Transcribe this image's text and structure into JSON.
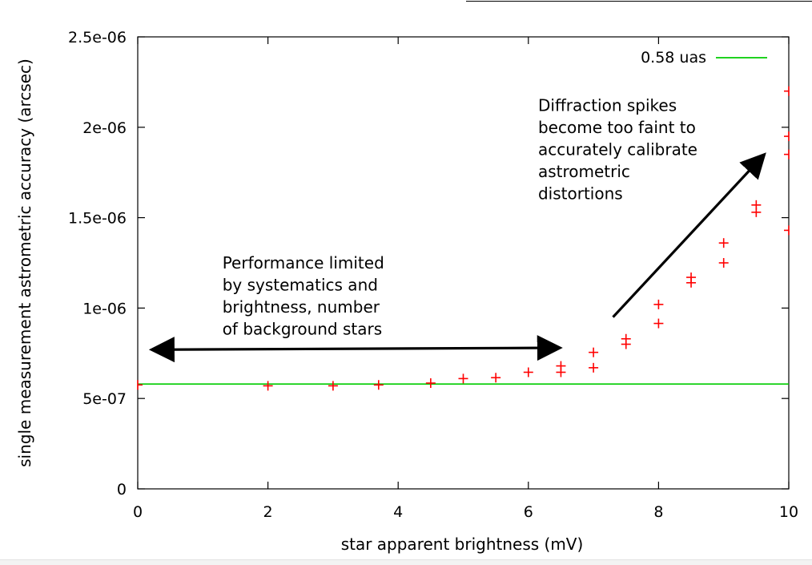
{
  "chart_data": {
    "type": "scatter",
    "title": "",
    "xlabel": "star apparent brightness (mV)",
    "ylabel": "single measurement astrometric accuracy (arcsec)",
    "xlim": [
      0,
      10
    ],
    "ylim": [
      0,
      2.5e-06
    ],
    "x_ticks": [
      {
        "value": 0,
        "label": "0"
      },
      {
        "value": 2,
        "label": "2"
      },
      {
        "value": 4,
        "label": "4"
      },
      {
        "value": 6,
        "label": "6"
      },
      {
        "value": 8,
        "label": "8"
      },
      {
        "value": 10,
        "label": "10"
      }
    ],
    "y_ticks": [
      {
        "value": 0,
        "label": "0"
      },
      {
        "value": 5e-07,
        "label": "5e-07"
      },
      {
        "value": 1e-06,
        "label": "1e-06"
      },
      {
        "value": 1.5e-06,
        "label": "1.5e-06"
      },
      {
        "value": 2e-06,
        "label": "2e-06"
      },
      {
        "value": 2.5e-06,
        "label": "2.5e-06"
      }
    ],
    "grid": false,
    "legend_position": "top-right",
    "series": [
      {
        "kind": "points",
        "marker": "+",
        "color": "#ff0000",
        "points": [
          {
            "x": 0,
            "y": 5.75e-07
          },
          {
            "x": 2,
            "y": 5.7e-07
          },
          {
            "x": 3,
            "y": 5.7e-07
          },
          {
            "x": 3.7,
            "y": 5.75e-07
          },
          {
            "x": 4.5,
            "y": 5.85e-07
          },
          {
            "x": 5,
            "y": 6.1e-07
          },
          {
            "x": 5.5,
            "y": 6.15e-07
          },
          {
            "x": 6,
            "y": 6.45e-07
          },
          {
            "x": 6.5,
            "y": 6.45e-07
          },
          {
            "x": 6.5,
            "y": 6.8e-07
          },
          {
            "x": 7,
            "y": 6.7e-07
          },
          {
            "x": 7,
            "y": 7.55e-07
          },
          {
            "x": 7.5,
            "y": 8e-07
          },
          {
            "x": 7.5,
            "y": 8.3e-07
          },
          {
            "x": 8,
            "y": 9.15e-07
          },
          {
            "x": 8,
            "y": 1.02e-06
          },
          {
            "x": 8.5,
            "y": 1.14e-06
          },
          {
            "x": 8.5,
            "y": 1.17e-06
          },
          {
            "x": 9,
            "y": 1.25e-06
          },
          {
            "x": 9,
            "y": 1.36e-06
          },
          {
            "x": 9.5,
            "y": 1.53e-06
          },
          {
            "x": 9.5,
            "y": 1.57e-06
          },
          {
            "x": 10,
            "y": 1.43e-06
          },
          {
            "x": 10,
            "y": 1.85e-06
          },
          {
            "x": 10,
            "y": 1.95e-06
          },
          {
            "x": 10,
            "y": 2.2e-06
          }
        ]
      },
      {
        "kind": "hline",
        "name": "0.58 uas",
        "color": "#00cc00",
        "y": 5.8e-07
      }
    ],
    "annotations": [
      {
        "lines": [
          "Performance limited",
          "by systematics and",
          "brightness, number",
          "of background stars"
        ],
        "anchor_x": 1.3,
        "anchor_y": 1.22e-06
      },
      {
        "lines": [
          "Diffraction spikes",
          "become too faint to",
          "accurately calibrate",
          "astrometric",
          "distortions"
        ],
        "anchor_x": 6.15,
        "anchor_y": 2.09e-06
      }
    ],
    "arrows": [
      {
        "x1": 0.25,
        "y1": 7.7e-07,
        "x2": 6.45,
        "y2": 7.8e-07,
        "double": true
      },
      {
        "x1": 7.3,
        "y1": 9.5e-07,
        "x2": 9.6,
        "y2": 1.84e-06,
        "double": false
      }
    ]
  }
}
